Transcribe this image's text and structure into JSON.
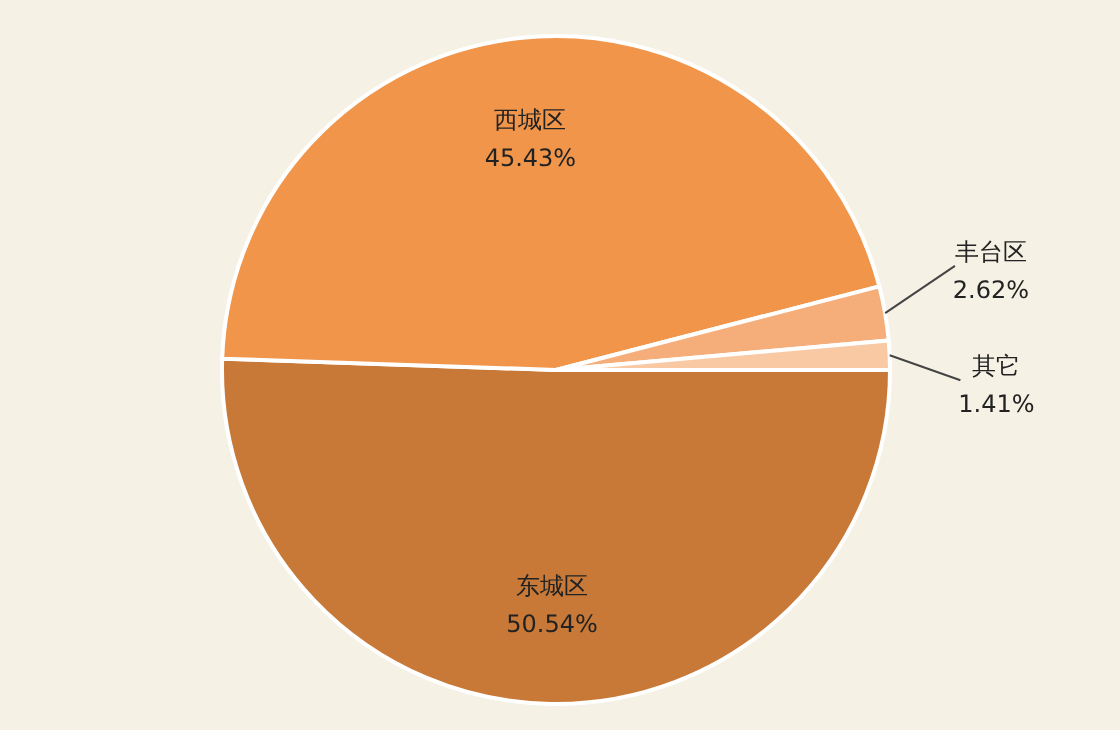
{
  "chart_data": {
    "type": "pie",
    "categories": [
      "东城区",
      "西城区",
      "丰台区",
      "其它"
    ],
    "values": [
      50.54,
      45.43,
      2.62,
      1.41
    ],
    "value_labels": [
      "50.54%",
      "45.43%",
      "2.62%",
      "1.41%"
    ],
    "colors": [
      "#c87937",
      "#f0954a",
      "#f5ae7a",
      "#f9c9a4"
    ]
  }
}
